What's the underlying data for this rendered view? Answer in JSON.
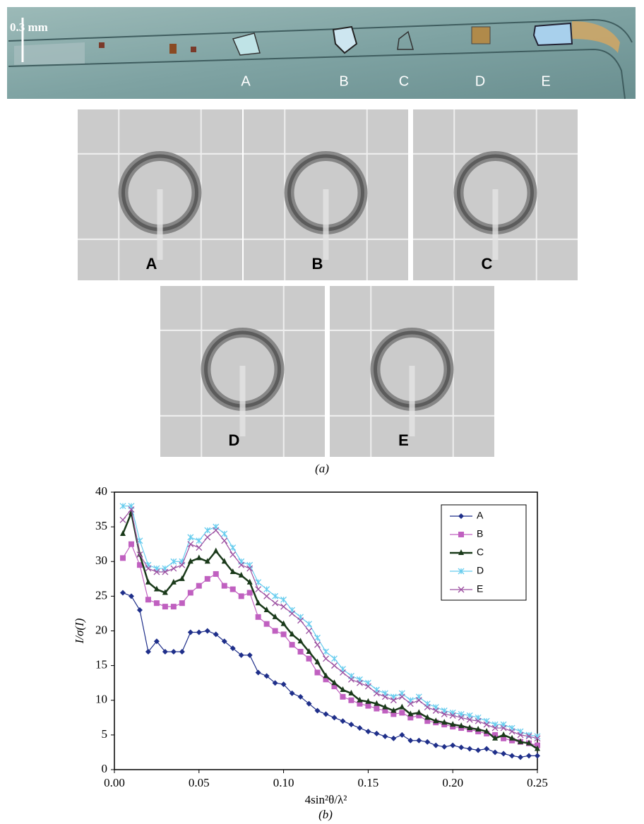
{
  "photo": {
    "scale": "0.3 mm",
    "labels": [
      "A",
      "B",
      "C",
      "D",
      "E"
    ]
  },
  "panels": {
    "labels": [
      "A",
      "B",
      "C",
      "D",
      "E"
    ]
  },
  "captions": [
    "(a)",
    "(b)"
  ],
  "chart_data": {
    "type": "line",
    "x_label": "4sin²θ/λ²",
    "y_label": "I/σ(I)",
    "x": [
      0.005,
      0.01,
      0.015,
      0.02,
      0.025,
      0.03,
      0.035,
      0.04,
      0.045,
      0.05,
      0.055,
      0.06,
      0.065,
      0.07,
      0.075,
      0.08,
      0.085,
      0.09,
      0.095,
      0.1,
      0.105,
      0.11,
      0.115,
      0.12,
      0.125,
      0.13,
      0.135,
      0.14,
      0.145,
      0.15,
      0.155,
      0.16,
      0.165,
      0.17,
      0.175,
      0.18,
      0.185,
      0.19,
      0.195,
      0.2,
      0.205,
      0.21,
      0.215,
      0.22,
      0.225,
      0.23,
      0.235,
      0.24,
      0.245,
      0.25
    ],
    "series": [
      {
        "name": "A",
        "color": "#1f2f8a",
        "marker": "diamond",
        "values": [
          25.5,
          25,
          23,
          17,
          18.5,
          17,
          17,
          17,
          19.8,
          19.8,
          20,
          19.5,
          18.5,
          17.5,
          16.5,
          16.5,
          14,
          13.5,
          12.5,
          12.3,
          11,
          10.5,
          9.5,
          8.5,
          8,
          7.5,
          7,
          6.5,
          6,
          5.5,
          5.2,
          4.8,
          4.5,
          5,
          4.2,
          4.2,
          4,
          3.5,
          3.3,
          3.5,
          3.2,
          3,
          2.8,
          3,
          2.5,
          2.3,
          2,
          1.8,
          2,
          2
        ]
      },
      {
        "name": "B",
        "color": "#c060c0",
        "marker": "square",
        "values": [
          30.5,
          32.5,
          29.5,
          24.5,
          24,
          23.5,
          23.5,
          24,
          25.5,
          26.5,
          27.5,
          28.2,
          26.5,
          26,
          25,
          25.5,
          22,
          21,
          20,
          19.5,
          18,
          17,
          16,
          14,
          13,
          12,
          10.5,
          10,
          9.5,
          9.2,
          8.8,
          8.5,
          8,
          8.2,
          7.5,
          7.8,
          7,
          6.8,
          6.5,
          6.2,
          6,
          5.8,
          5.5,
          5.2,
          5,
          4.5,
          4.2,
          4,
          3.8,
          3.5
        ]
      },
      {
        "name": "C",
        "color": "#1a3a1a",
        "marker": "triangle",
        "values": [
          34,
          37,
          31,
          27,
          26,
          25.5,
          27,
          27.5,
          30,
          30.5,
          30,
          31.5,
          30,
          28.5,
          28,
          27,
          24,
          23,
          22,
          21,
          19.5,
          18.5,
          17,
          15.5,
          13.5,
          12.5,
          11.5,
          11,
          10,
          9.8,
          9.5,
          9,
          8.5,
          9,
          8,
          8.2,
          7.5,
          7,
          6.8,
          6.5,
          6.3,
          6,
          5.8,
          5.5,
          4.5,
          5,
          4.5,
          4,
          3.8,
          3
        ]
      },
      {
        "name": "D",
        "color": "#66ccee",
        "marker": "star",
        "values": [
          38,
          38,
          33,
          29.5,
          29,
          29,
          30,
          30,
          33.5,
          33,
          34.5,
          35,
          34,
          32,
          30,
          29.5,
          27,
          26,
          25,
          24.5,
          23,
          22,
          21,
          19,
          17,
          16,
          14.5,
          13.5,
          13,
          12.5,
          11.5,
          11,
          10.5,
          11,
          10,
          10.5,
          9.5,
          9,
          8.5,
          8.2,
          8,
          7.8,
          7.5,
          7,
          6.5,
          6.5,
          6,
          5.5,
          5,
          4.8
        ]
      },
      {
        "name": "E",
        "color": "#9b4fa0",
        "marker": "x",
        "values": [
          36,
          37.5,
          31,
          29,
          28.5,
          28.5,
          29,
          29.5,
          32.5,
          32,
          33.5,
          34.5,
          33,
          31,
          29.5,
          29,
          26,
          25,
          24,
          23.5,
          22.5,
          21.5,
          20,
          18,
          16,
          15,
          14,
          13,
          12.5,
          12,
          11,
          10.5,
          10,
          10.5,
          9.5,
          10,
          9,
          8.5,
          8,
          7.8,
          7.5,
          7.2,
          7,
          6.5,
          6,
          6,
          5.5,
          5,
          4.8,
          4.5
        ]
      }
    ],
    "xlim": [
      0,
      0.25
    ],
    "ylim": [
      0,
      40
    ],
    "xticks": [
      {
        "value": 0,
        "label": "0.00"
      },
      0.05,
      {
        "value": 0.1,
        "label": "0.10"
      },
      0.15,
      {
        "value": 0.2,
        "label": "0.20"
      },
      0.25
    ],
    "yticks": [
      0,
      5,
      10,
      15,
      20,
      25,
      30,
      35,
      40
    ],
    "legend": "upper right",
    "grid": false
  }
}
